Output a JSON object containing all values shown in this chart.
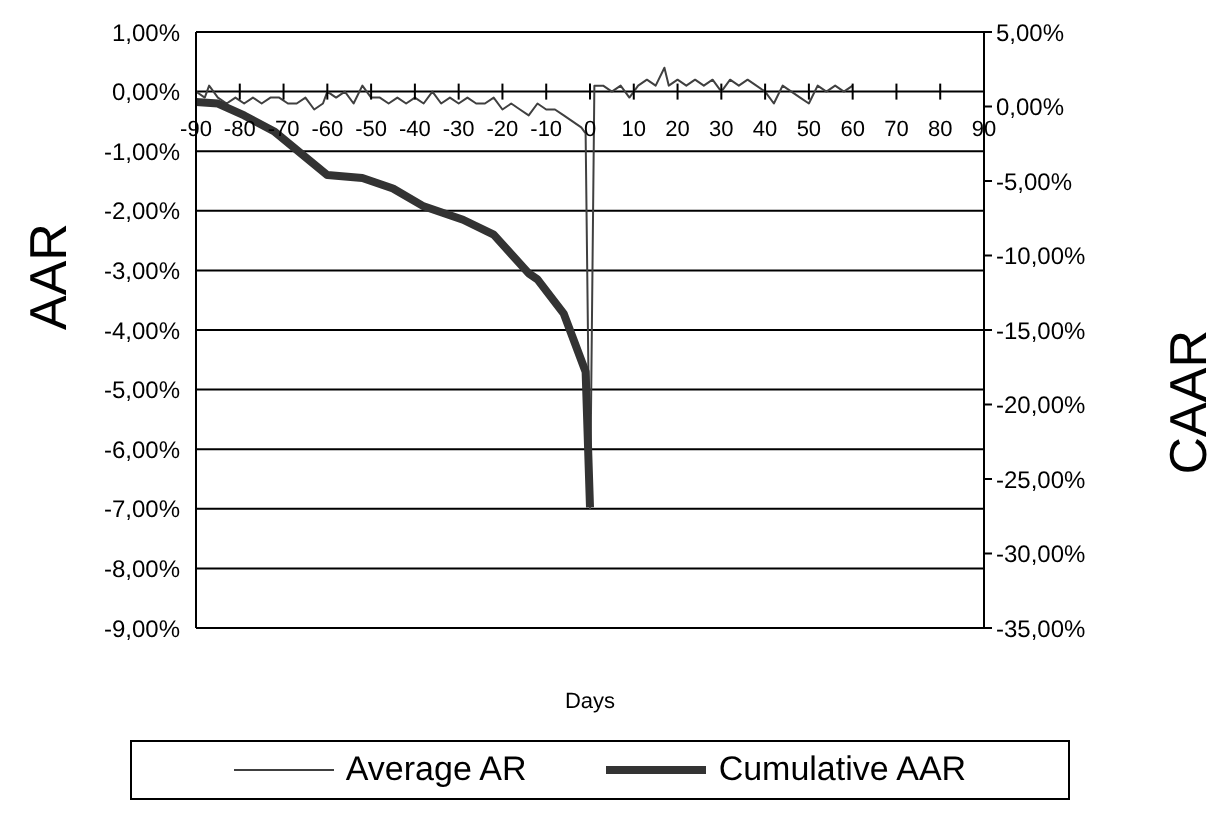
{
  "chart_data": {
    "type": "line",
    "xlabel": "Days",
    "ylabel": "AAR",
    "y2label": "CAAR",
    "xlim": [
      -90,
      90
    ],
    "xticks": [
      -90,
      -80,
      -70,
      -60,
      -50,
      -40,
      -30,
      -20,
      -10,
      0,
      10,
      20,
      30,
      40,
      50,
      60,
      70,
      80,
      90
    ],
    "ylim": [
      -9,
      1
    ],
    "yticks": [
      {
        "value": -9,
        "label": "-9,00%"
      },
      {
        "value": -8,
        "label": "-8,00%"
      },
      {
        "value": -7,
        "label": "-7,00%"
      },
      {
        "value": -6,
        "label": "-6,00%"
      },
      {
        "value": -5,
        "label": "-5,00%"
      },
      {
        "value": -4,
        "label": "-4,00%"
      },
      {
        "value": -3,
        "label": "-3,00%"
      },
      {
        "value": -2,
        "label": "-2,00%"
      },
      {
        "value": -1,
        "label": "-1,00%"
      },
      {
        "value": 0,
        "label": "0,00%"
      },
      {
        "value": 1,
        "label": "1,00%"
      }
    ],
    "y2lim": [
      -35,
      5
    ],
    "y2ticks": [
      {
        "value": -35,
        "label": "-35,00%"
      },
      {
        "value": -30,
        "label": "-30,00%"
      },
      {
        "value": -25,
        "label": "-25,00%"
      },
      {
        "value": -20,
        "label": "-20,00%"
      },
      {
        "value": -15,
        "label": "-15,00%"
      },
      {
        "value": -10,
        "label": "-10,00%"
      },
      {
        "value": -5,
        "label": "-5,00%"
      },
      {
        "value": 0,
        "label": "0,00%"
      },
      {
        "value": 5,
        "label": "5,00%"
      }
    ],
    "grid": "y",
    "legend": "bottom",
    "marker": "none",
    "series": [
      {
        "name": "Average AR",
        "color": "#404040",
        "x": [
          -90,
          -88,
          -87,
          -85,
          -83,
          -81,
          -79,
          -77,
          -75,
          -73,
          -71,
          -69,
          -67,
          -65,
          -63,
          -61,
          -60,
          -58,
          -56,
          -54,
          -52,
          -50,
          -48,
          -46,
          -44,
          -42,
          -40,
          -38,
          -36,
          -34,
          -32,
          -30,
          -28,
          -26,
          -24,
          -22,
          -20,
          -18,
          -16,
          -14,
          -12,
          -10,
          -8,
          -6,
          -4,
          -2,
          -1,
          0,
          1,
          3,
          5,
          7,
          9,
          11,
          13,
          15,
          17,
          18,
          20,
          22,
          24,
          26,
          28,
          30,
          32,
          34,
          36,
          38,
          40,
          42,
          44,
          46,
          48,
          50,
          52,
          54,
          56,
          58,
          60
        ],
        "values": [
          0.0,
          -0.1,
          0.1,
          -0.1,
          -0.2,
          -0.1,
          -0.2,
          -0.1,
          -0.2,
          -0.1,
          -0.1,
          -0.2,
          -0.2,
          -0.1,
          -0.3,
          -0.2,
          0.0,
          -0.1,
          0.0,
          -0.2,
          0.1,
          -0.1,
          -0.1,
          -0.2,
          -0.1,
          -0.2,
          -0.1,
          -0.2,
          0.0,
          -0.2,
          -0.1,
          -0.2,
          -0.1,
          -0.2,
          -0.2,
          -0.1,
          -0.3,
          -0.2,
          -0.3,
          -0.4,
          -0.2,
          -0.3,
          -0.3,
          -0.4,
          -0.5,
          -0.6,
          -0.7,
          -7.0,
          0.1,
          0.1,
          0.0,
          0.1,
          -0.1,
          0.1,
          0.2,
          0.1,
          0.4,
          0.1,
          0.2,
          0.1,
          0.2,
          0.1,
          0.2,
          0.0,
          0.2,
          0.1,
          0.2,
          0.1,
          0.0,
          -0.2,
          0.1,
          0.0,
          -0.1,
          -0.2,
          0.1,
          0.0,
          0.1,
          0.0,
          0.1
        ]
      },
      {
        "name": "Cumulative AAR",
        "color": "#333333",
        "axis": "y2",
        "x": [
          -90,
          -85,
          -79,
          -72,
          -65,
          -60,
          -52,
          -45,
          -38,
          -29,
          -22,
          -14,
          -12,
          -6,
          -1,
          0
        ],
        "values": [
          0.3,
          0.2,
          -0.6,
          -1.7,
          -3.4,
          -4.6,
          -4.8,
          -5.5,
          -6.7,
          -7.6,
          -8.6,
          -11.2,
          -11.6,
          -13.9,
          -17.8,
          -26.9
        ]
      }
    ]
  }
}
